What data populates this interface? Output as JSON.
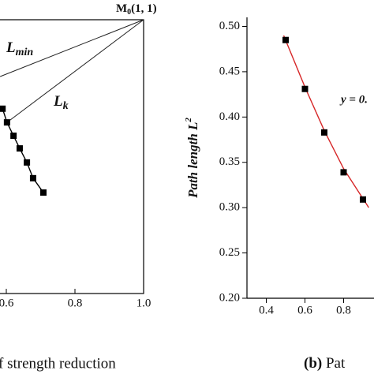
{
  "chart_data": [
    {
      "type": "scatter",
      "annotation": {
        "main": "M",
        "sub": "0",
        "rest": "(1,  1)"
      },
      "caption": "f strength reduction",
      "xlim": [
        0.2,
        1.0
      ],
      "ylim": [
        0.2,
        1.0
      ],
      "xticks": [
        0.6,
        0.8,
        {
          "value": 1,
          "label": "1.0"
        }
      ],
      "frame": true,
      "guides": [
        {
          "label": "L",
          "sub": "min",
          "x": [
            1,
            0.582
          ],
          "y": [
            1,
            0.834
          ]
        },
        {
          "label": "L",
          "sub": "k",
          "x": [
            1,
            0.602
          ],
          "y": [
            1,
            0.7
          ]
        }
      ],
      "series": [
        {
          "color": "#000000",
          "marker": "square",
          "line": true,
          "x": [
            0.589,
            0.602,
            0.621,
            0.639,
            0.66,
            0.678,
            0.708
          ],
          "values": [
            0.74,
            0.7,
            0.661,
            0.624,
            0.583,
            0.537,
            0.495
          ]
        }
      ]
    },
    {
      "type": "scatter",
      "y_label": "Path length L",
      "y_label_sup": "2",
      "annotation_text": "y = 0.",
      "caption_label": "(b)",
      "caption": "Pat",
      "xlim": [
        0.3,
        1.0
      ],
      "ylim": [
        0.2,
        0.51
      ],
      "xticks": [
        0.4,
        0.6,
        0.8
      ],
      "yticks": [
        {
          "value": 0.2,
          "label": "0.20"
        },
        0.25,
        {
          "value": 0.3,
          "label": "0.30"
        },
        0.35,
        {
          "value": 0.4,
          "label": "0.40"
        },
        0.45,
        {
          "value": 0.5,
          "label": "0.50"
        }
      ],
      "frame": false,
      "series": [
        {
          "color": "#d62728",
          "marker": "none",
          "line": true,
          "x": [
            0.49,
            0.6,
            0.7,
            0.8,
            0.93
          ],
          "values": [
            0.49,
            0.433,
            0.385,
            0.343,
            0.3
          ]
        },
        {
          "color": "#000000",
          "marker": "square",
          "line": false,
          "x": [
            0.5,
            0.6,
            0.7,
            0.8,
            0.9
          ],
          "values": [
            0.485,
            0.431,
            0.383,
            0.339,
            0.309
          ]
        }
      ]
    }
  ]
}
